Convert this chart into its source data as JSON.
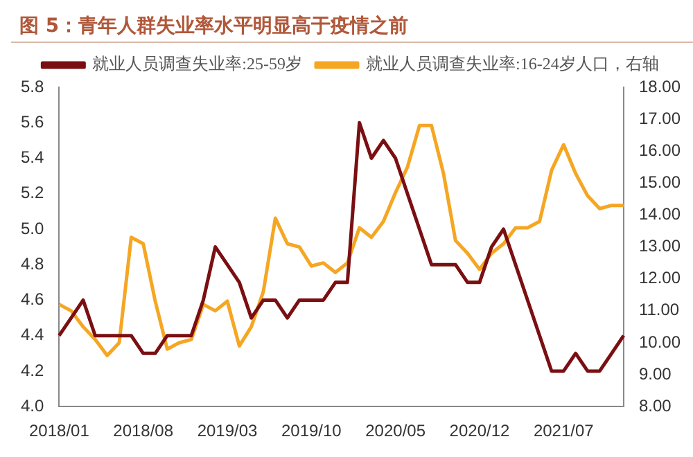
{
  "chart_data": {
    "type": "line",
    "title": "图 5：青年人群失业率水平明显高于疫情之前",
    "categories": [
      "2018/01",
      null,
      null,
      null,
      null,
      null,
      null,
      "2018/08",
      null,
      null,
      null,
      null,
      null,
      null,
      "2019/03",
      null,
      null,
      null,
      null,
      null,
      null,
      "2019/10",
      null,
      null,
      null,
      null,
      null,
      null,
      "2020/05",
      null,
      null,
      null,
      null,
      null,
      null,
      "2020/12",
      null,
      null,
      null,
      null,
      null,
      null,
      "2021/07",
      null,
      null,
      null,
      null,
      null
    ],
    "series": [
      {
        "name": "就业人员调查失业率:25-59岁",
        "color": "#7a0f12",
        "values": [
          4.4,
          4.5,
          4.6,
          4.4,
          4.4,
          4.4,
          4.4,
          4.3,
          4.3,
          4.4,
          4.4,
          4.4,
          4.6,
          4.9,
          4.8,
          4.7,
          4.5,
          4.6,
          4.6,
          4.5,
          4.6,
          4.6,
          4.6,
          4.7,
          4.7,
          5.6,
          5.4,
          5.5,
          5.4,
          5.2,
          5.0,
          4.8,
          4.8,
          4.8,
          4.7,
          4.7,
          4.9,
          5.0,
          4.8,
          4.6,
          4.4,
          4.2,
          4.2,
          4.3,
          4.2,
          4.2,
          4.3,
          4.4
        ]
      },
      {
        "name": "就业人员调查失业率:16-24岁人口，右轴",
        "color": "#f5a623",
        "axis": "y2",
        "values": [
          11.2,
          11.0,
          10.5,
          10.1,
          9.6,
          10.0,
          13.3,
          13.1,
          11.3,
          9.8,
          10.0,
          10.1,
          11.2,
          11.0,
          11.3,
          9.9,
          10.5,
          11.6,
          13.9,
          13.1,
          13.0,
          12.4,
          12.5,
          12.2,
          12.5,
          13.6,
          13.3,
          13.8,
          14.7,
          15.5,
          16.8,
          16.8,
          15.3,
          13.2,
          12.8,
          12.3,
          12.8,
          13.1,
          13.6,
          13.6,
          13.8,
          15.4,
          16.2,
          15.3,
          14.6,
          14.2,
          14.3,
          14.3
        ]
      }
    ],
    "ylim": [
      4.0,
      5.8
    ],
    "yticks": [
      {
        "value": 4.0,
        "label": "4.0"
      },
      {
        "value": 4.2,
        "label": "4.2"
      },
      {
        "value": 4.4,
        "label": "4.4"
      },
      {
        "value": 4.6,
        "label": "4.6"
      },
      {
        "value": 4.8,
        "label": "4.8"
      },
      {
        "value": 5.0,
        "label": "5.0"
      },
      {
        "value": 5.2,
        "label": "5.2"
      },
      {
        "value": 5.4,
        "label": "5.4"
      },
      {
        "value": 5.6,
        "label": "5.6"
      },
      {
        "value": 5.8,
        "label": "5.8"
      }
    ],
    "y2lim": [
      8,
      18
    ],
    "y2ticks": [
      {
        "value": 8,
        "label": "8.00"
      },
      {
        "value": 9,
        "label": "9.00"
      },
      {
        "value": 10,
        "label": "10.00"
      },
      {
        "value": 11,
        "label": "11.00"
      },
      {
        "value": 12,
        "label": "12.00"
      },
      {
        "value": 13,
        "label": "13.00"
      },
      {
        "value": 14,
        "label": "14.00"
      },
      {
        "value": 15,
        "label": "15.00"
      },
      {
        "value": 16,
        "label": "16.00"
      },
      {
        "value": 17,
        "label": "17.00"
      },
      {
        "value": 18,
        "label": "18.00"
      }
    ],
    "grid": false,
    "legend": "top",
    "marker": "none",
    "line_style": "solid"
  }
}
